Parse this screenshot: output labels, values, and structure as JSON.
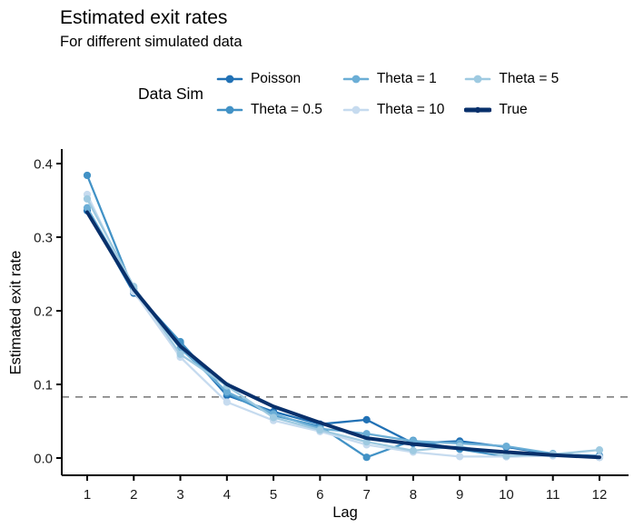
{
  "header": {
    "title": "Estimated exit rates",
    "subtitle": "For different simulated data"
  },
  "legend": {
    "title": "Data Sim",
    "entries": [
      {
        "label": "Poisson",
        "color": "#2171b5",
        "thick": false
      },
      {
        "label": "Theta = 0.5",
        "color": "#4292c6",
        "thick": false
      },
      {
        "label": "Theta = 1",
        "color": "#6baed6",
        "thick": false
      },
      {
        "label": "Theta = 10",
        "color": "#c6dbef",
        "thick": false
      },
      {
        "label": "Theta = 5",
        "color": "#9ecae1",
        "thick": false
      },
      {
        "label": "True",
        "color": "#08306b",
        "thick": true
      }
    ]
  },
  "chart_data": {
    "type": "line",
    "title": "Estimated exit rates",
    "subtitle": "For different simulated data",
    "xlabel": "Lag",
    "ylabel": "Estimated exit rate",
    "x": [
      1,
      2,
      3,
      4,
      5,
      6,
      7,
      8,
      9,
      10,
      11,
      12
    ],
    "ylim": [
      0.0,
      0.4
    ],
    "yticks": [
      0.0,
      0.1,
      0.2,
      0.3,
      0.4
    ],
    "ytick_labels": [
      "0.0",
      "0.1",
      "0.2",
      "0.3",
      "0.4"
    ],
    "grid": false,
    "legend_position": "top",
    "hline_value": 0.083,
    "hline_style": "dashed",
    "hline_color": "#808080",
    "axis_color": "#000000",
    "series": [
      {
        "name": "Poisson",
        "color": "#2171b5",
        "line_width": 2.3,
        "markers": true,
        "values": [
          0.336,
          0.224,
          0.156,
          0.085,
          0.063,
          0.046,
          0.052,
          0.02,
          0.023,
          0.015,
          0.005,
          0.003
        ]
      },
      {
        "name": "Theta = 0.5",
        "color": "#4292c6",
        "line_width": 2.3,
        "markers": true,
        "values": [
          0.384,
          0.227,
          0.158,
          0.088,
          0.058,
          0.043,
          0.001,
          0.024,
          0.012,
          0.002,
          0.004,
          0.001
        ]
      },
      {
        "name": "Theta = 1",
        "color": "#6baed6",
        "line_width": 2.3,
        "markers": true,
        "values": [
          0.34,
          0.23,
          0.149,
          0.09,
          0.06,
          0.04,
          0.033,
          0.023,
          0.02,
          0.016,
          0.006,
          0.002
        ]
      },
      {
        "name": "Theta = 10",
        "color": "#c6dbef",
        "line_width": 2.3,
        "markers": true,
        "values": [
          0.358,
          0.226,
          0.137,
          0.076,
          0.051,
          0.036,
          0.018,
          0.008,
          0.002,
          0.002,
          0.003,
          0.001
        ]
      },
      {
        "name": "Theta = 5",
        "color": "#9ecae1",
        "line_width": 2.3,
        "markers": true,
        "values": [
          0.352,
          0.233,
          0.141,
          0.098,
          0.055,
          0.038,
          0.022,
          0.01,
          0.016,
          0.003,
          0.005,
          0.011
        ]
      },
      {
        "name": "True",
        "color": "#08306b",
        "line_width": 4.0,
        "markers": false,
        "values": [
          0.334,
          0.229,
          0.152,
          0.1,
          0.07,
          0.048,
          0.027,
          0.019,
          0.013,
          0.008,
          0.004,
          0.001
        ]
      }
    ]
  }
}
